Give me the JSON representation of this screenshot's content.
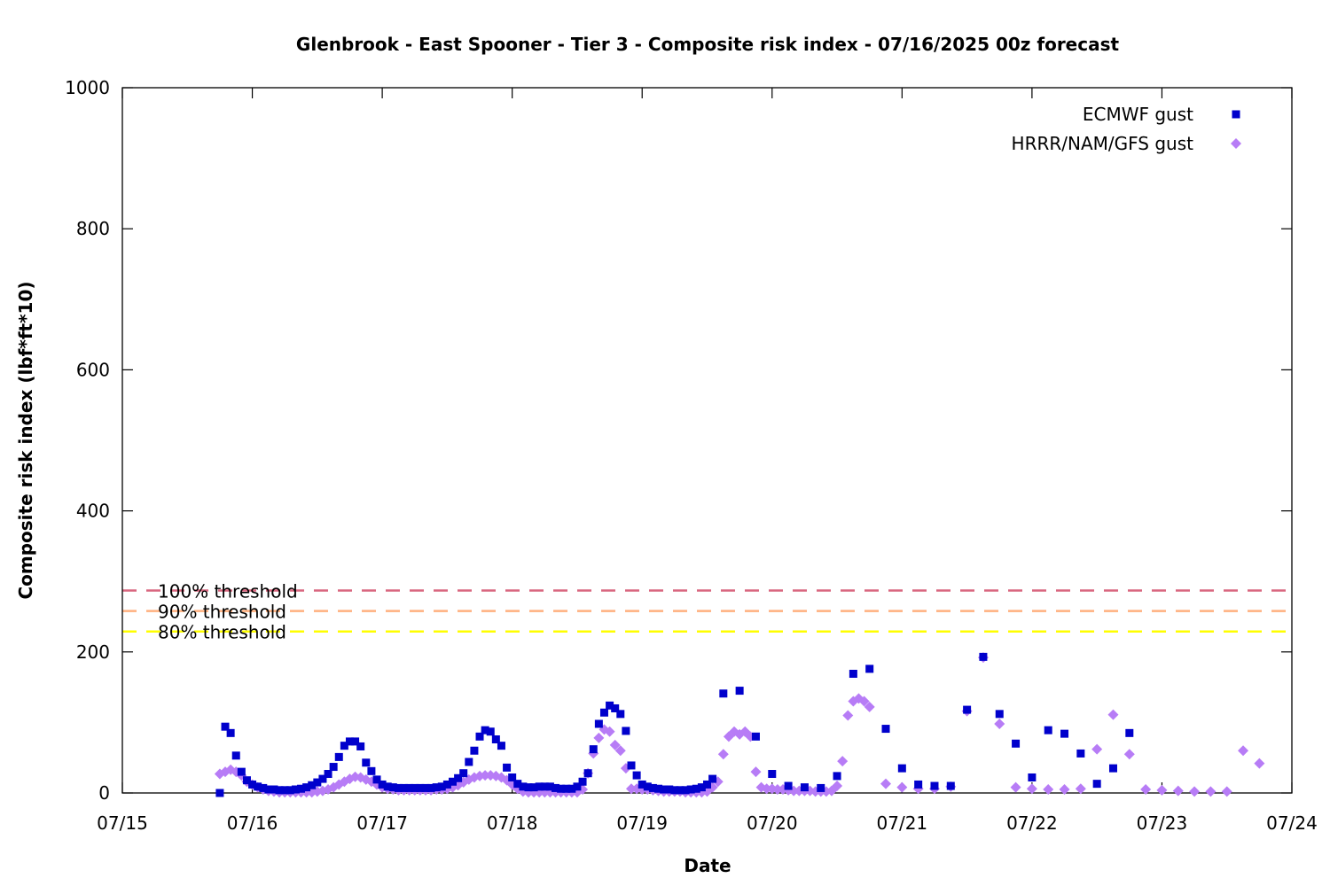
{
  "chart_data": {
    "type": "scatter",
    "title": "Glenbrook - East Spooner - Tier 3 - Composite risk index - 07/16/2025 00z forecast",
    "xlabel": "Date",
    "ylabel": "Composite risk index (lbf*ft*10)",
    "xlim": [
      "07/15 00:00",
      "07/24 00:00"
    ],
    "ylim": [
      0,
      1000
    ],
    "x_ticks": [
      "07/15",
      "07/16",
      "07/17",
      "07/18",
      "07/19",
      "07/20",
      "07/21",
      "07/22",
      "07/23",
      "07/24"
    ],
    "y_ticks": [
      "0",
      "200",
      "400",
      "600",
      "800",
      "1000"
    ],
    "grid": false,
    "legend_position": "top-right",
    "thresholds": [
      {
        "label": "100% threshold",
        "value": 287,
        "color": "#d9667f"
      },
      {
        "label": "90% threshold",
        "value": 258,
        "color": "#ffb07f"
      },
      {
        "label": "80% threshold",
        "value": 229,
        "color": "#ffff00"
      }
    ],
    "series": [
      {
        "name": "ECMWF gust",
        "marker": "square",
        "color": "#0000cc",
        "points": [
          [
            "07/15 18:00",
            0
          ],
          [
            "07/15 19:00",
            94
          ],
          [
            "07/15 20:00",
            85
          ],
          [
            "07/15 21:00",
            53
          ],
          [
            "07/15 22:00",
            30
          ],
          [
            "07/15 23:00",
            18
          ],
          [
            "07/16 00:00",
            12
          ],
          [
            "07/16 01:00",
            9
          ],
          [
            "07/16 02:00",
            7
          ],
          [
            "07/16 03:00",
            5
          ],
          [
            "07/16 04:00",
            5
          ],
          [
            "07/16 05:00",
            4
          ],
          [
            "07/16 06:00",
            4
          ],
          [
            "07/16 07:00",
            4
          ],
          [
            "07/16 08:00",
            5
          ],
          [
            "07/16 09:00",
            6
          ],
          [
            "07/16 10:00",
            8
          ],
          [
            "07/16 11:00",
            11
          ],
          [
            "07/16 12:00",
            15
          ],
          [
            "07/16 13:00",
            20
          ],
          [
            "07/16 14:00",
            27
          ],
          [
            "07/16 15:00",
            37
          ],
          [
            "07/16 16:00",
            51
          ],
          [
            "07/16 17:00",
            67
          ],
          [
            "07/16 18:00",
            73
          ],
          [
            "07/16 19:00",
            73
          ],
          [
            "07/16 20:00",
            66
          ],
          [
            "07/16 21:00",
            43
          ],
          [
            "07/16 22:00",
            31
          ],
          [
            "07/16 23:00",
            19
          ],
          [
            "07/17 00:00",
            12
          ],
          [
            "07/17 01:00",
            9
          ],
          [
            "07/17 02:00",
            8
          ],
          [
            "07/17 03:00",
            7
          ],
          [
            "07/17 04:00",
            7
          ],
          [
            "07/17 05:00",
            7
          ],
          [
            "07/17 06:00",
            7
          ],
          [
            "07/17 07:00",
            7
          ],
          [
            "07/17 08:00",
            7
          ],
          [
            "07/17 09:00",
            7
          ],
          [
            "07/17 10:00",
            8
          ],
          [
            "07/17 11:00",
            9
          ],
          [
            "07/17 12:00",
            12
          ],
          [
            "07/17 13:00",
            16
          ],
          [
            "07/17 14:00",
            21
          ],
          [
            "07/17 15:00",
            28
          ],
          [
            "07/17 16:00",
            44
          ],
          [
            "07/17 17:00",
            60
          ],
          [
            "07/17 18:00",
            80
          ],
          [
            "07/17 19:00",
            89
          ],
          [
            "07/17 20:00",
            87
          ],
          [
            "07/17 21:00",
            76
          ],
          [
            "07/17 22:00",
            67
          ],
          [
            "07/17 23:00",
            36
          ],
          [
            "07/18 00:00",
            22
          ],
          [
            "07/18 01:00",
            13
          ],
          [
            "07/18 02:00",
            9
          ],
          [
            "07/18 03:00",
            8
          ],
          [
            "07/18 04:00",
            8
          ],
          [
            "07/18 05:00",
            9
          ],
          [
            "07/18 06:00",
            9
          ],
          [
            "07/18 07:00",
            9
          ],
          [
            "07/18 08:00",
            7
          ],
          [
            "07/18 09:00",
            6
          ],
          [
            "07/18 10:00",
            6
          ],
          [
            "07/18 11:00",
            6
          ],
          [
            "07/18 12:00",
            9
          ],
          [
            "07/18 13:00",
            16
          ],
          [
            "07/18 14:00",
            28
          ],
          [
            "07/18 15:00",
            62
          ],
          [
            "07/18 16:00",
            98
          ],
          [
            "07/18 17:00",
            114
          ],
          [
            "07/18 18:00",
            124
          ],
          [
            "07/18 19:00",
            120
          ],
          [
            "07/18 20:00",
            112
          ],
          [
            "07/18 21:00",
            88
          ],
          [
            "07/18 22:00",
            39
          ],
          [
            "07/18 23:00",
            25
          ],
          [
            "07/19 00:00",
            12
          ],
          [
            "07/19 01:00",
            9
          ],
          [
            "07/19 02:00",
            7
          ],
          [
            "07/19 03:00",
            6
          ],
          [
            "07/19 04:00",
            5
          ],
          [
            "07/19 05:00",
            5
          ],
          [
            "07/19 06:00",
            4
          ],
          [
            "07/19 07:00",
            4
          ],
          [
            "07/19 08:00",
            4
          ],
          [
            "07/19 09:00",
            5
          ],
          [
            "07/19 10:00",
            6
          ],
          [
            "07/19 11:00",
            8
          ],
          [
            "07/19 12:00",
            12
          ],
          [
            "07/19 13:00",
            20
          ],
          [
            "07/19 15:00",
            141
          ],
          [
            "07/19 18:00",
            145
          ],
          [
            "07/19 21:00",
            80
          ],
          [
            "07/20 00:00",
            27
          ],
          [
            "07/20 03:00",
            10
          ],
          [
            "07/20 06:00",
            8
          ],
          [
            "07/20 09:00",
            7
          ],
          [
            "07/20 12:00",
            24
          ],
          [
            "07/20 15:00",
            169
          ],
          [
            "07/20 18:00",
            176
          ],
          [
            "07/20 21:00",
            91
          ],
          [
            "07/21 00:00",
            35
          ],
          [
            "07/21 03:00",
            12
          ],
          [
            "07/21 06:00",
            10
          ],
          [
            "07/21 09:00",
            10
          ],
          [
            "07/21 12:00",
            118
          ],
          [
            "07/21 15:00",
            193
          ],
          [
            "07/21 18:00",
            112
          ],
          [
            "07/21 21:00",
            70
          ],
          [
            "07/22 00:00",
            22
          ],
          [
            "07/22 03:00",
            89
          ],
          [
            "07/22 06:00",
            84
          ],
          [
            "07/22 09:00",
            56
          ],
          [
            "07/22 12:00",
            13
          ],
          [
            "07/22 15:00",
            35
          ],
          [
            "07/22 18:00",
            85
          ]
        ]
      },
      {
        "name": "HRRR/NAM/GFS gust",
        "marker": "diamond",
        "color": "#b77cf6",
        "points": [
          [
            "07/15 18:00",
            27
          ],
          [
            "07/15 19:00",
            30
          ],
          [
            "07/15 20:00",
            33
          ],
          [
            "07/15 21:00",
            30
          ],
          [
            "07/15 22:00",
            25
          ],
          [
            "07/15 23:00",
            16
          ],
          [
            "07/16 00:00",
            12
          ],
          [
            "07/16 01:00",
            8
          ],
          [
            "07/16 02:00",
            5
          ],
          [
            "07/16 03:00",
            3
          ],
          [
            "07/16 04:00",
            2
          ],
          [
            "07/16 05:00",
            1
          ],
          [
            "07/16 06:00",
            1
          ],
          [
            "07/16 07:00",
            1
          ],
          [
            "07/16 08:00",
            1
          ],
          [
            "07/16 09:00",
            1
          ],
          [
            "07/16 10:00",
            1
          ],
          [
            "07/16 11:00",
            1
          ],
          [
            "07/16 12:00",
            2
          ],
          [
            "07/16 13:00",
            3
          ],
          [
            "07/16 14:00",
            5
          ],
          [
            "07/16 15:00",
            8
          ],
          [
            "07/16 16:00",
            12
          ],
          [
            "07/16 17:00",
            16
          ],
          [
            "07/16 18:00",
            20
          ],
          [
            "07/16 19:00",
            23
          ],
          [
            "07/16 20:00",
            22
          ],
          [
            "07/16 21:00",
            19
          ],
          [
            "07/16 22:00",
            16
          ],
          [
            "07/16 23:00",
            12
          ],
          [
            "07/17 00:00",
            8
          ],
          [
            "07/17 01:00",
            6
          ],
          [
            "07/17 02:00",
            5
          ],
          [
            "07/17 03:00",
            4
          ],
          [
            "07/17 04:00",
            4
          ],
          [
            "07/17 05:00",
            4
          ],
          [
            "07/17 06:00",
            4
          ],
          [
            "07/17 07:00",
            4
          ],
          [
            "07/17 08:00",
            4
          ],
          [
            "07/17 09:00",
            4
          ],
          [
            "07/17 10:00",
            5
          ],
          [
            "07/17 11:00",
            5
          ],
          [
            "07/17 12:00",
            6
          ],
          [
            "07/17 13:00",
            8
          ],
          [
            "07/17 14:00",
            11
          ],
          [
            "07/17 15:00",
            15
          ],
          [
            "07/17 16:00",
            19
          ],
          [
            "07/17 17:00",
            22
          ],
          [
            "07/17 18:00",
            24
          ],
          [
            "07/17 19:00",
            25
          ],
          [
            "07/17 20:00",
            25
          ],
          [
            "07/17 21:00",
            24
          ],
          [
            "07/17 22:00",
            22
          ],
          [
            "07/17 23:00",
            18
          ],
          [
            "07/18 00:00",
            12
          ],
          [
            "07/18 01:00",
            6
          ],
          [
            "07/18 02:00",
            2
          ],
          [
            "07/18 03:00",
            1
          ],
          [
            "07/18 04:00",
            1
          ],
          [
            "07/18 05:00",
            1
          ],
          [
            "07/18 06:00",
            1
          ],
          [
            "07/18 07:00",
            1
          ],
          [
            "07/18 08:00",
            1
          ],
          [
            "07/18 09:00",
            1
          ],
          [
            "07/18 10:00",
            1
          ],
          [
            "07/18 11:00",
            1
          ],
          [
            "07/18 12:00",
            1
          ],
          [
            "07/18 13:00",
            5
          ],
          [
            "07/18 14:00",
            28
          ],
          [
            "07/18 15:00",
            56
          ],
          [
            "07/18 16:00",
            78
          ],
          [
            "07/18 17:00",
            90
          ],
          [
            "07/18 18:00",
            87
          ],
          [
            "07/18 19:00",
            68
          ],
          [
            "07/18 20:00",
            60
          ],
          [
            "07/18 21:00",
            35
          ],
          [
            "07/18 22:00",
            6
          ],
          [
            "07/18 23:00",
            6
          ],
          [
            "07/19 00:00",
            5
          ],
          [
            "07/19 01:00",
            5
          ],
          [
            "07/19 02:00",
            4
          ],
          [
            "07/19 03:00",
            3
          ],
          [
            "07/19 04:00",
            2
          ],
          [
            "07/19 05:00",
            2
          ],
          [
            "07/19 06:00",
            2
          ],
          [
            "07/19 07:00",
            2
          ],
          [
            "07/19 08:00",
            1
          ],
          [
            "07/19 09:00",
            1
          ],
          [
            "07/19 10:00",
            1
          ],
          [
            "07/19 11:00",
            1
          ],
          [
            "07/19 12:00",
            2
          ],
          [
            "07/19 13:00",
            8
          ],
          [
            "07/19 14:00",
            16
          ],
          [
            "07/19 15:00",
            55
          ],
          [
            "07/19 16:00",
            80
          ],
          [
            "07/19 17:00",
            87
          ],
          [
            "07/19 18:00",
            83
          ],
          [
            "07/19 19:00",
            87
          ],
          [
            "07/19 20:00",
            80
          ],
          [
            "07/19 21:00",
            30
          ],
          [
            "07/19 22:00",
            8
          ],
          [
            "07/19 23:00",
            6
          ],
          [
            "07/20 00:00",
            6
          ],
          [
            "07/20 01:00",
            5
          ],
          [
            "07/20 02:00",
            5
          ],
          [
            "07/20 03:00",
            4
          ],
          [
            "07/20 04:00",
            3
          ],
          [
            "07/20 05:00",
            3
          ],
          [
            "07/20 06:00",
            3
          ],
          [
            "07/20 07:00",
            3
          ],
          [
            "07/20 08:00",
            2
          ],
          [
            "07/20 09:00",
            2
          ],
          [
            "07/20 10:00",
            2
          ],
          [
            "07/20 11:00",
            3
          ],
          [
            "07/20 12:00",
            10
          ],
          [
            "07/20 13:00",
            45
          ],
          [
            "07/20 14:00",
            110
          ],
          [
            "07/20 15:00",
            130
          ],
          [
            "07/20 16:00",
            134
          ],
          [
            "07/20 17:00",
            130
          ],
          [
            "07/20 18:00",
            122
          ],
          [
            "07/20 21:00",
            13
          ],
          [
            "07/21 00:00",
            8
          ],
          [
            "07/21 03:00",
            6
          ],
          [
            "07/21 06:00",
            6
          ],
          [
            "07/21 09:00",
            9
          ],
          [
            "07/21 12:00",
            116
          ],
          [
            "07/21 15:00",
            192
          ],
          [
            "07/21 18:00",
            98
          ],
          [
            "07/21 21:00",
            8
          ],
          [
            "07/22 00:00",
            6
          ],
          [
            "07/22 03:00",
            5
          ],
          [
            "07/22 06:00",
            5
          ],
          [
            "07/22 09:00",
            6
          ],
          [
            "07/22 12:00",
            62
          ],
          [
            "07/22 15:00",
            111
          ],
          [
            "07/22 18:00",
            55
          ],
          [
            "07/22 21:00",
            5
          ],
          [
            "07/23 00:00",
            4
          ],
          [
            "07/23 03:00",
            3
          ],
          [
            "07/23 06:00",
            2
          ],
          [
            "07/23 09:00",
            2
          ],
          [
            "07/23 12:00",
            2
          ],
          [
            "07/23 15:00",
            60
          ],
          [
            "07/23 18:00",
            42
          ]
        ]
      }
    ]
  }
}
